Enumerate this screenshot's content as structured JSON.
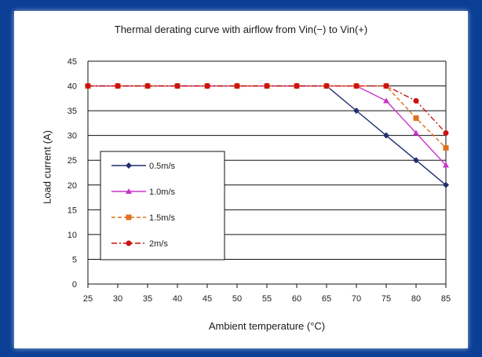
{
  "chart_data": {
    "type": "line",
    "title": "Thermal derating curve with airflow from Vin(−) to Vin(+)",
    "xlabel": "Ambient temperature (°C)",
    "ylabel": "Load current (A)",
    "x": [
      25,
      30,
      35,
      40,
      45,
      50,
      55,
      60,
      65,
      70,
      75,
      80,
      85
    ],
    "xlim": [
      25,
      85
    ],
    "ylim": [
      0,
      45
    ],
    "yticks": [
      0,
      5,
      10,
      15,
      20,
      25,
      30,
      35,
      40,
      45
    ],
    "grid": "horizontal",
    "legend_position": "left",
    "series": [
      {
        "name": "0.5m/s",
        "color": "#1f2f6e",
        "marker": "diamond",
        "dash": "solid",
        "values": [
          40,
          40,
          40,
          40,
          40,
          40,
          40,
          40,
          40,
          35,
          30,
          25,
          20
        ]
      },
      {
        "name": "1.0m/s",
        "color": "#cc33cc",
        "marker": "triangle",
        "dash": "solid",
        "values": [
          40,
          40,
          40,
          40,
          40,
          40,
          40,
          40,
          40,
          40,
          37,
          30.5,
          24
        ]
      },
      {
        "name": "1.5m/s",
        "color": "#e07020",
        "marker": "square",
        "dash": "dashed",
        "values": [
          40,
          40,
          40,
          40,
          40,
          40,
          40,
          40,
          40,
          40,
          40,
          33.5,
          27.5
        ]
      },
      {
        "name": "2m/s",
        "color": "#cc1111",
        "marker": "circle",
        "dash": "dashdot",
        "values": [
          40,
          40,
          40,
          40,
          40,
          40,
          40,
          40,
          40,
          40,
          40,
          37,
          30.5
        ]
      }
    ]
  }
}
